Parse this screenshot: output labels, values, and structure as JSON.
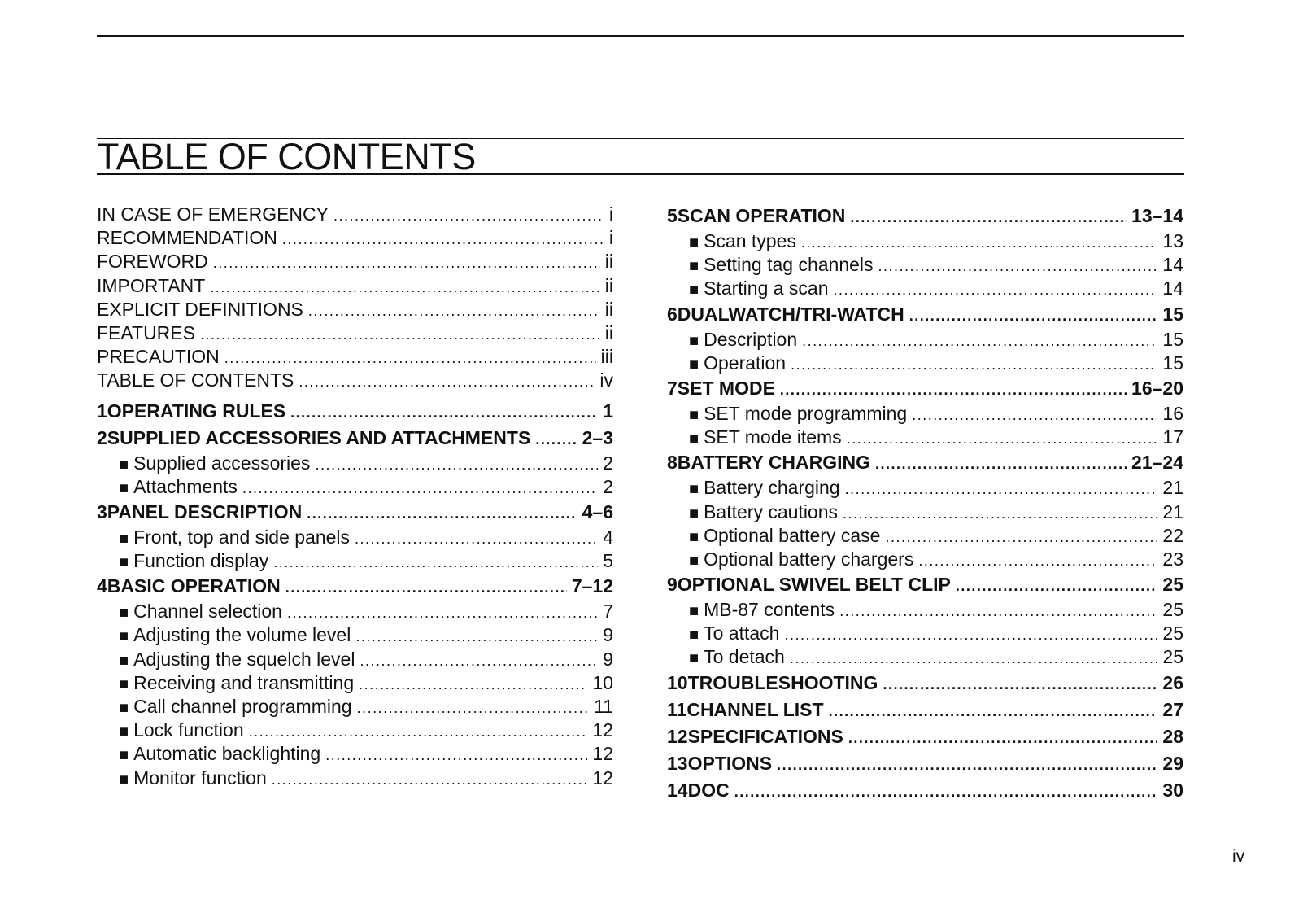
{
  "title": "TABLE OF CONTENTS",
  "page_number": "iv",
  "left": [
    {
      "type": "plain",
      "label": "IN CASE OF EMERGENCY",
      "page": "i"
    },
    {
      "type": "plain",
      "label": "RECOMMENDATION",
      "page": "i"
    },
    {
      "type": "plain",
      "label": "FOREWORD",
      "page": "ii"
    },
    {
      "type": "plain",
      "label": "IMPORTANT",
      "page": "ii"
    },
    {
      "type": "plain",
      "label": "EXPLICIT DEFINITIONS",
      "page": "ii"
    },
    {
      "type": "plain",
      "label": "FEATURES",
      "page": "ii"
    },
    {
      "type": "plain",
      "label": "PRECAUTION",
      "page": "iii"
    },
    {
      "type": "plain",
      "label": "TABLE OF CONTENTS",
      "page": "iv"
    },
    {
      "type": "heading",
      "num": "1",
      "label": "OPERATING RULES",
      "page": "1"
    },
    {
      "type": "heading",
      "num": "2",
      "label": "SUPPLIED ACCESSORIES AND ATTACHMENTS",
      "page": "2–3"
    },
    {
      "type": "sub",
      "label": "Supplied accessories",
      "page": "2"
    },
    {
      "type": "sub",
      "label": "Attachments",
      "page": "2"
    },
    {
      "type": "heading",
      "num": "3",
      "label": "PANEL DESCRIPTION",
      "page": "4–6"
    },
    {
      "type": "sub",
      "label": "Front, top and side panels",
      "page": "4"
    },
    {
      "type": "sub",
      "label": "Function display",
      "page": "5"
    },
    {
      "type": "heading",
      "num": "4",
      "label": "BASIC OPERATION",
      "page": "7–12"
    },
    {
      "type": "sub",
      "label": "Channel selection",
      "page": "7"
    },
    {
      "type": "sub",
      "label": "Adjusting the volume level",
      "page": "9"
    },
    {
      "type": "sub",
      "label": "Adjusting the squelch level",
      "page": "9"
    },
    {
      "type": "sub",
      "label": "Receiving and transmitting",
      "page": "10"
    },
    {
      "type": "sub",
      "label": "Call channel programming",
      "page": "11"
    },
    {
      "type": "sub",
      "label": "Lock function",
      "page": "12"
    },
    {
      "type": "sub",
      "label": "Automatic backlighting",
      "page": "12"
    },
    {
      "type": "sub",
      "label": "Monitor function",
      "page": "12"
    }
  ],
  "right": [
    {
      "type": "heading",
      "num": "5",
      "label": "SCAN OPERATION",
      "page": "13–14"
    },
    {
      "type": "sub",
      "label": "Scan types",
      "page": "13"
    },
    {
      "type": "sub",
      "label": "Setting tag channels",
      "page": "14"
    },
    {
      "type": "sub",
      "label": "Starting a scan",
      "page": "14"
    },
    {
      "type": "heading",
      "num": "6",
      "label": "DUALWATCH/TRI-WATCH",
      "page": "15"
    },
    {
      "type": "sub",
      "label": "Description",
      "page": "15"
    },
    {
      "type": "sub",
      "label": "Operation",
      "page": "15"
    },
    {
      "type": "heading",
      "num": "7",
      "label": "SET MODE",
      "page": "16–20"
    },
    {
      "type": "sub",
      "label": "SET mode programming",
      "page": "16"
    },
    {
      "type": "sub",
      "label": "SET mode items",
      "page": "17"
    },
    {
      "type": "heading",
      "num": "8",
      "label": "BATTERY CHARGING",
      "page": "21–24"
    },
    {
      "type": "sub",
      "label": "Battery charging",
      "page": "21"
    },
    {
      "type": "sub",
      "label": "Battery cautions",
      "page": "21"
    },
    {
      "type": "sub",
      "label": "Optional battery case",
      "page": "22"
    },
    {
      "type": "sub",
      "label": "Optional battery chargers",
      "page": "23"
    },
    {
      "type": "heading",
      "num": "9",
      "label": "OPTIONAL SWIVEL BELT CLIP",
      "page": "25"
    },
    {
      "type": "sub",
      "label": "MB-87 contents",
      "page": "25"
    },
    {
      "type": "sub",
      "label": "To attach",
      "page": "25"
    },
    {
      "type": "sub",
      "label": "To detach",
      "page": "25"
    },
    {
      "type": "heading",
      "num": "10",
      "label": "TROUBLESHOOTING",
      "page": "26"
    },
    {
      "type": "heading",
      "num": "11",
      "label": "CHANNEL LIST",
      "page": "27"
    },
    {
      "type": "heading",
      "num": "12",
      "label": "SPECIFICATIONS",
      "page": "28"
    },
    {
      "type": "heading",
      "num": "13",
      "label": "OPTIONS",
      "page": "29"
    },
    {
      "type": "heading",
      "num": "14",
      "label": "DOC",
      "page": "30"
    }
  ]
}
